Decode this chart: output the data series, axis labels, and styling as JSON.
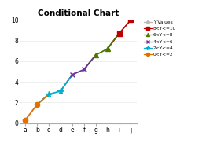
{
  "title": "Conditional Chart",
  "categories": [
    "a",
    "b",
    "c",
    "d",
    "e",
    "f",
    "g",
    "h",
    "i",
    "j"
  ],
  "y_values": [
    0.3,
    1.8,
    2.8,
    3.1,
    4.7,
    5.2,
    6.6,
    7.2,
    8.7,
    10.0
  ],
  "ylim": [
    0,
    10
  ],
  "yticks": [
    0,
    2,
    4,
    6,
    8,
    10
  ],
  "background_color": "#ffffff",
  "base_line_color": "#b8b8b8",
  "legend_entries": [
    {
      "label": "Y Values",
      "color": "#b8b8b8",
      "marker": "D",
      "markersize": 3.5
    },
    {
      "label": "8<Y<=10",
      "color": "#c00000",
      "marker": "s",
      "markersize": 4.5
    },
    {
      "label": "6<Y<=8",
      "color": "#4f7800",
      "marker": "^",
      "markersize": 4.5
    },
    {
      "label": "4<Y<=6",
      "color": "#7030a0",
      "marker": "x",
      "markersize": 4.5
    },
    {
      "label": "2<Y<=4",
      "color": "#00b0d0",
      "marker": "*",
      "markersize": 5.5
    },
    {
      "label": "0<Y<=2",
      "color": "#e07000",
      "marker": "o",
      "markersize": 4.5
    }
  ],
  "bands": [
    {
      "lo": 8.0,
      "hi": 10.0,
      "color": "#c00000",
      "marker": "s",
      "markersize": 4.5
    },
    {
      "lo": 6.0,
      "hi": 8.0,
      "color": "#4f7800",
      "marker": "^",
      "markersize": 4.5
    },
    {
      "lo": 4.0,
      "hi": 6.0,
      "color": "#7030a0",
      "marker": "x",
      "markersize": 4.5
    },
    {
      "lo": 2.0,
      "hi": 4.0,
      "color": "#00b0d0",
      "marker": "*",
      "markersize": 5.5
    },
    {
      "lo": 0.0,
      "hi": 2.0,
      "color": "#e07000",
      "marker": "o",
      "markersize": 4.5
    }
  ]
}
